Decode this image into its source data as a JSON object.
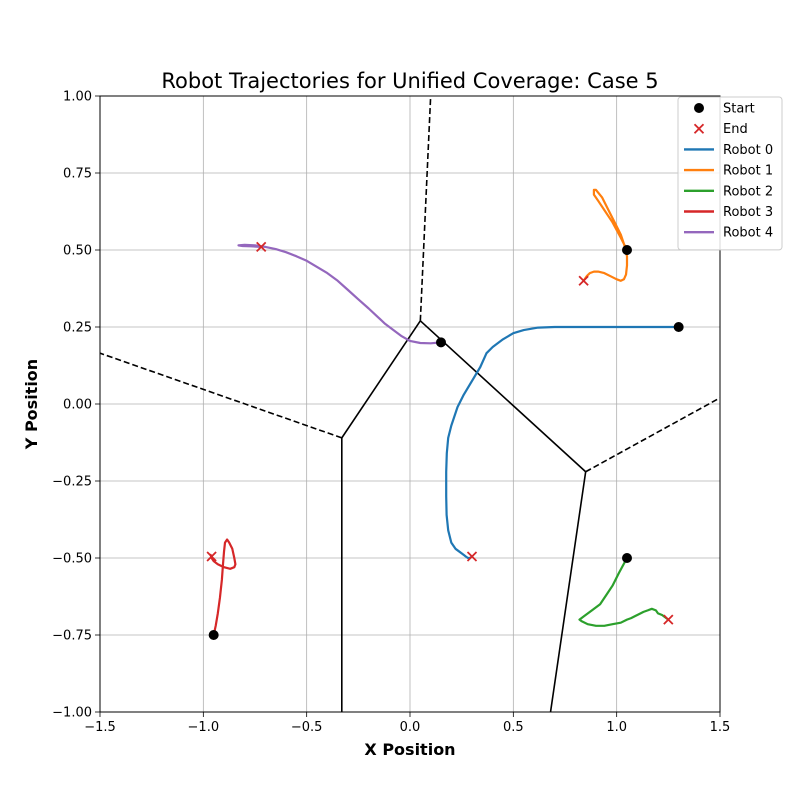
{
  "chart_data": {
    "type": "line",
    "title": "Robot Trajectories for Unified Coverage: Case 5",
    "xlabel": "X Position",
    "ylabel": "Y Position",
    "xlim": [
      -1.5,
      1.5
    ],
    "ylim": [
      -1.0,
      1.0
    ],
    "xticks": [
      -1.5,
      -1.0,
      -0.5,
      0.0,
      0.5,
      1.0,
      1.5
    ],
    "xtick_labels": [
      "−1.5",
      "−1.0",
      "−0.5",
      "0.0",
      "0.5",
      "1.0",
      "1.5"
    ],
    "yticks": [
      -1.0,
      -0.75,
      -0.5,
      -0.25,
      0.0,
      0.25,
      0.5,
      0.75,
      1.0
    ],
    "ytick_labels": [
      "−1.00",
      "−0.75",
      "−0.50",
      "−0.25",
      "0.00",
      "0.25",
      "0.50",
      "0.75",
      "1.00"
    ],
    "grid": true,
    "legend_position": "top-right",
    "legend": [
      {
        "label": "Start",
        "kind": "marker-dot",
        "color": "#000000"
      },
      {
        "label": "End",
        "kind": "marker-x",
        "color": "#d62728"
      },
      {
        "label": "Robot 0",
        "kind": "line",
        "color": "#1f77b4"
      },
      {
        "label": "Robot 1",
        "kind": "line",
        "color": "#ff7f0e"
      },
      {
        "label": "Robot 2",
        "kind": "line",
        "color": "#2ca02c"
      },
      {
        "label": "Robot 3",
        "kind": "line",
        "color": "#d62728"
      },
      {
        "label": "Robot 4",
        "kind": "line",
        "color": "#9467bd"
      }
    ],
    "series": [
      {
        "name": "Robot 0",
        "color": "#1f77b4",
        "start": [
          1.3,
          0.25
        ],
        "end": [
          0.3,
          -0.495
        ],
        "points": [
          [
            1.3,
            0.25
          ],
          [
            1.1,
            0.25
          ],
          [
            0.9,
            0.25
          ],
          [
            0.7,
            0.25
          ],
          [
            0.62,
            0.248
          ],
          [
            0.55,
            0.24
          ],
          [
            0.5,
            0.23
          ],
          [
            0.45,
            0.21
          ],
          [
            0.4,
            0.185
          ],
          [
            0.37,
            0.165
          ],
          [
            0.34,
            0.12
          ],
          [
            0.3,
            0.075
          ],
          [
            0.26,
            0.03
          ],
          [
            0.23,
            -0.01
          ],
          [
            0.2,
            -0.07
          ],
          [
            0.185,
            -0.11
          ],
          [
            0.178,
            -0.16
          ],
          [
            0.175,
            -0.22
          ],
          [
            0.175,
            -0.3
          ],
          [
            0.177,
            -0.36
          ],
          [
            0.185,
            -0.41
          ],
          [
            0.2,
            -0.45
          ],
          [
            0.22,
            -0.47
          ],
          [
            0.24,
            -0.48
          ],
          [
            0.25,
            -0.485
          ],
          [
            0.26,
            -0.49
          ],
          [
            0.27,
            -0.495
          ],
          [
            0.28,
            -0.5
          ],
          [
            0.29,
            -0.5
          ],
          [
            0.3,
            -0.495
          ]
        ]
      },
      {
        "name": "Robot 1",
        "color": "#ff7f0e",
        "start": [
          1.05,
          0.5
        ],
        "end": [
          0.84,
          0.4
        ],
        "points": [
          [
            1.05,
            0.5
          ],
          [
            1.02,
            0.54
          ],
          [
            0.98,
            0.59
          ],
          [
            0.94,
            0.63
          ],
          [
            0.91,
            0.66
          ],
          [
            0.89,
            0.68
          ],
          [
            0.89,
            0.695
          ],
          [
            0.9,
            0.695
          ],
          [
            0.93,
            0.67
          ],
          [
            0.96,
            0.63
          ],
          [
            0.99,
            0.59
          ],
          [
            1.02,
            0.55
          ],
          [
            1.04,
            0.51
          ],
          [
            1.05,
            0.48
          ],
          [
            1.05,
            0.45
          ],
          [
            1.045,
            0.42
          ],
          [
            1.035,
            0.405
          ],
          [
            1.02,
            0.4
          ],
          [
            1.0,
            0.405
          ],
          [
            0.97,
            0.415
          ],
          [
            0.94,
            0.425
          ],
          [
            0.91,
            0.43
          ],
          [
            0.89,
            0.43
          ],
          [
            0.87,
            0.425
          ],
          [
            0.855,
            0.415
          ],
          [
            0.845,
            0.405
          ],
          [
            0.84,
            0.4
          ]
        ]
      },
      {
        "name": "Robot 2",
        "color": "#2ca02c",
        "start": [
          1.05,
          -0.5
        ],
        "end": [
          1.25,
          -0.7
        ],
        "points": [
          [
            1.05,
            -0.5
          ],
          [
            1.01,
            -0.55
          ],
          [
            0.98,
            -0.59
          ],
          [
            0.95,
            -0.62
          ],
          [
            0.92,
            -0.65
          ],
          [
            0.88,
            -0.67
          ],
          [
            0.84,
            -0.69
          ],
          [
            0.82,
            -0.7
          ],
          [
            0.83,
            -0.705
          ],
          [
            0.86,
            -0.715
          ],
          [
            0.9,
            -0.72
          ],
          [
            0.94,
            -0.72
          ],
          [
            0.98,
            -0.715
          ],
          [
            1.02,
            -0.71
          ],
          [
            1.05,
            -0.7
          ],
          [
            1.07,
            -0.695
          ],
          [
            1.1,
            -0.685
          ],
          [
            1.13,
            -0.675
          ],
          [
            1.15,
            -0.67
          ],
          [
            1.17,
            -0.665
          ],
          [
            1.19,
            -0.67
          ],
          [
            1.2,
            -0.68
          ],
          [
            1.22,
            -0.685
          ],
          [
            1.24,
            -0.695
          ],
          [
            1.25,
            -0.7
          ]
        ]
      },
      {
        "name": "Robot 3",
        "color": "#d62728",
        "start": [
          -0.95,
          -0.75
        ],
        "end": [
          -0.96,
          -0.495
        ],
        "points": [
          [
            -0.95,
            -0.75
          ],
          [
            -0.94,
            -0.72
          ],
          [
            -0.93,
            -0.68
          ],
          [
            -0.92,
            -0.63
          ],
          [
            -0.91,
            -0.57
          ],
          [
            -0.905,
            -0.52
          ],
          [
            -0.9,
            -0.48
          ],
          [
            -0.895,
            -0.45
          ],
          [
            -0.885,
            -0.44
          ],
          [
            -0.875,
            -0.45
          ],
          [
            -0.86,
            -0.47
          ],
          [
            -0.85,
            -0.5
          ],
          [
            -0.845,
            -0.52
          ],
          [
            -0.85,
            -0.53
          ],
          [
            -0.87,
            -0.535
          ],
          [
            -0.9,
            -0.53
          ],
          [
            -0.93,
            -0.52
          ],
          [
            -0.95,
            -0.51
          ],
          [
            -0.96,
            -0.5
          ],
          [
            -0.965,
            -0.49
          ],
          [
            -0.96,
            -0.495
          ]
        ]
      },
      {
        "name": "Robot 4",
        "color": "#9467bd",
        "start": [
          0.15,
          0.2
        ],
        "end": [
          -0.72,
          0.51
        ],
        "points": [
          [
            0.15,
            0.2
          ],
          [
            0.1,
            0.197
          ],
          [
            0.05,
            0.198
          ],
          [
            0.0,
            0.205
          ],
          [
            -0.04,
            0.22
          ],
          [
            -0.08,
            0.24
          ],
          [
            -0.12,
            0.26
          ],
          [
            -0.16,
            0.285
          ],
          [
            -0.2,
            0.31
          ],
          [
            -0.25,
            0.34
          ],
          [
            -0.3,
            0.37
          ],
          [
            -0.35,
            0.4
          ],
          [
            -0.4,
            0.425
          ],
          [
            -0.45,
            0.445
          ],
          [
            -0.5,
            0.465
          ],
          [
            -0.55,
            0.48
          ],
          [
            -0.6,
            0.493
          ],
          [
            -0.65,
            0.503
          ],
          [
            -0.7,
            0.51
          ],
          [
            -0.75,
            0.515
          ],
          [
            -0.8,
            0.517
          ],
          [
            -0.83,
            0.515
          ],
          [
            -0.81,
            0.513
          ],
          [
            -0.77,
            0.512
          ],
          [
            -0.72,
            0.51
          ]
        ]
      }
    ],
    "partition_edges": [
      {
        "style": "solid",
        "from": [
          0.05,
          0.27
        ],
        "to": [
          0.85,
          -0.22
        ]
      },
      {
        "style": "solid",
        "from": [
          0.05,
          0.27
        ],
        "to": [
          -0.33,
          -0.11
        ]
      },
      {
        "style": "solid",
        "from": [
          -0.33,
          -0.11
        ],
        "to": [
          -0.33,
          -1.0
        ]
      },
      {
        "style": "solid",
        "from": [
          0.85,
          -0.22
        ],
        "to": [
          0.68,
          -1.0
        ]
      },
      {
        "style": "dashed",
        "from": [
          0.05,
          0.27
        ],
        "to": [
          0.1,
          1.0
        ]
      },
      {
        "style": "dashed",
        "from": [
          -0.33,
          -0.11
        ],
        "to": [
          -1.5,
          0.165
        ]
      },
      {
        "style": "dashed",
        "from": [
          0.85,
          -0.22
        ],
        "to": [
          1.5,
          0.02
        ]
      }
    ]
  }
}
